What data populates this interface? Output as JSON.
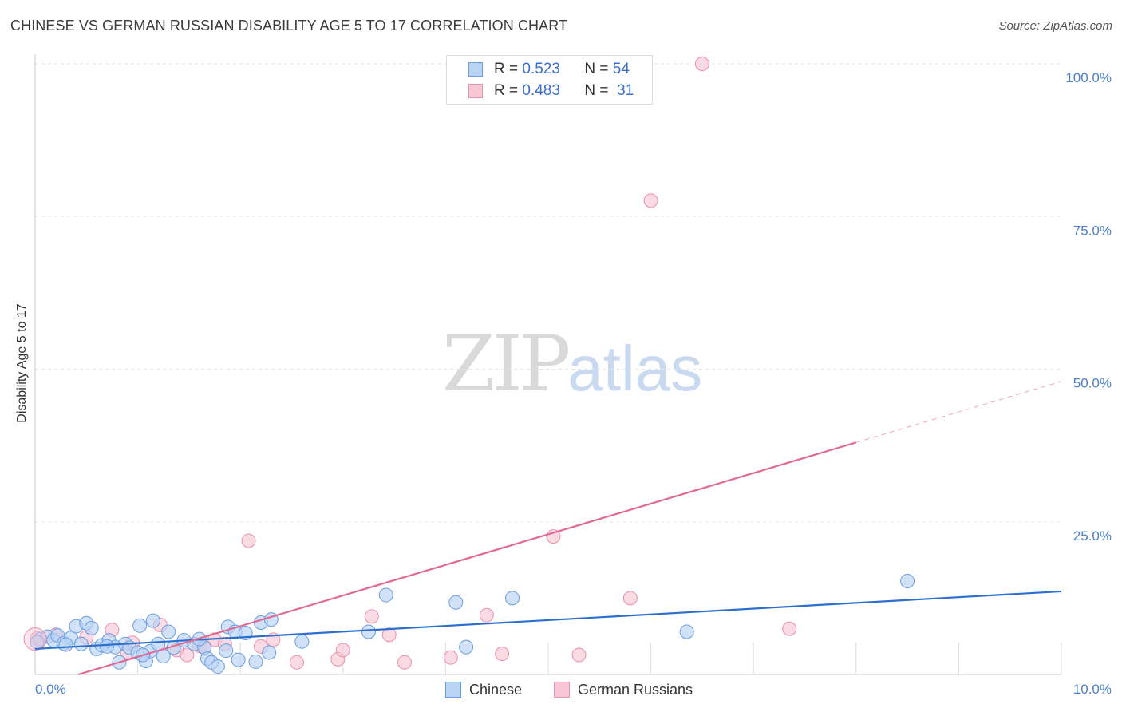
{
  "header": {
    "title": "CHINESE VS GERMAN RUSSIAN DISABILITY AGE 5 TO 17 CORRELATION CHART",
    "source": "Source: ZipAtlas.com"
  },
  "watermark": {
    "zip": "ZIP",
    "atlas": "atlas"
  },
  "legend": {
    "r_label": "R =",
    "n_label": "N =",
    "series": [
      {
        "name": "Chinese",
        "r": "0.523",
        "n": "54"
      },
      {
        "name": "German Russians",
        "r": "0.483",
        "n": "31"
      }
    ]
  },
  "colors": {
    "chinese_fill": "#b9d3f4",
    "chinese_stroke": "#6a9ee0",
    "chinese_line": "#2d6fcf",
    "german_fill": "#f8c6d4",
    "german_stroke": "#e991ad",
    "german_line": "#e06a93",
    "tick_text": "#4a7fd1",
    "grid": "#e5e5e5"
  },
  "chart_data": {
    "type": "scatter",
    "title": "CHINESE VS GERMAN RUSSIAN DISABILITY AGE 5 TO 17 CORRELATION CHART",
    "xlabel": "",
    "ylabel": "Disability Age 5 to 17",
    "xlim": [
      0,
      10
    ],
    "ylim": [
      0,
      100
    ],
    "x_tick_labels": [
      "0.0%",
      "10.0%"
    ],
    "y_ticks": [
      25,
      50,
      75,
      100
    ],
    "y_tick_labels": [
      "25.0%",
      "50.0%",
      "75.0%",
      "100.0%"
    ],
    "grid": true,
    "series": [
      {
        "name": "Chinese",
        "points": [
          [
            0.05,
            5.8
          ],
          [
            0.12,
            6.2
          ],
          [
            0.18,
            5.6
          ],
          [
            0.22,
            6.4
          ],
          [
            0.28,
            5.1
          ],
          [
            0.35,
            6.0
          ],
          [
            0.4,
            7.9
          ],
          [
            0.45,
            5.0
          ],
          [
            0.5,
            8.4
          ],
          [
            0.55,
            7.6
          ],
          [
            0.6,
            4.2
          ],
          [
            0.65,
            4.8
          ],
          [
            0.72,
            5.6
          ],
          [
            0.78,
            4.5
          ],
          [
            0.82,
            2.0
          ],
          [
            0.88,
            5.0
          ],
          [
            0.92,
            4.4
          ],
          [
            1.0,
            3.6
          ],
          [
            1.02,
            8.0
          ],
          [
            1.08,
            2.2
          ],
          [
            1.12,
            3.8
          ],
          [
            1.15,
            8.8
          ],
          [
            1.2,
            5.0
          ],
          [
            1.25,
            3.0
          ],
          [
            1.3,
            7.0
          ],
          [
            1.35,
            4.4
          ],
          [
            1.45,
            5.6
          ],
          [
            1.55,
            5.0
          ],
          [
            1.65,
            4.4
          ],
          [
            1.68,
            2.6
          ],
          [
            1.72,
            2.0
          ],
          [
            1.78,
            1.3
          ],
          [
            1.86,
            3.9
          ],
          [
            1.88,
            7.8
          ],
          [
            1.95,
            7.0
          ],
          [
            1.98,
            2.4
          ],
          [
            2.15,
            2.1
          ],
          [
            2.2,
            8.5
          ],
          [
            2.28,
            3.6
          ],
          [
            2.3,
            9.0
          ],
          [
            2.6,
            5.4
          ],
          [
            3.25,
            7.0
          ],
          [
            3.42,
            13.0
          ],
          [
            4.1,
            11.8
          ],
          [
            4.2,
            4.5
          ],
          [
            4.65,
            12.5
          ],
          [
            6.35,
            7.0
          ],
          [
            8.5,
            15.3
          ],
          [
            0.02,
            5.3
          ],
          [
            0.3,
            4.9
          ],
          [
            0.7,
            4.6
          ],
          [
            1.05,
            3.2
          ],
          [
            1.6,
            5.8
          ],
          [
            2.05,
            6.8
          ]
        ]
      },
      {
        "name": "German Russians",
        "points": [
          [
            0.02,
            5.9
          ],
          [
            0.2,
            6.5
          ],
          [
            0.5,
            6.1
          ],
          [
            0.75,
            7.3
          ],
          [
            0.95,
            5.2
          ],
          [
            1.22,
            8.1
          ],
          [
            1.38,
            4.0
          ],
          [
            1.48,
            3.2
          ],
          [
            1.6,
            4.7
          ],
          [
            1.75,
            5.7
          ],
          [
            1.85,
            5.0
          ],
          [
            2.08,
            21.9
          ],
          [
            2.2,
            4.6
          ],
          [
            2.32,
            5.7
          ],
          [
            2.55,
            2.0
          ],
          [
            2.95,
            2.5
          ],
          [
            3.28,
            9.5
          ],
          [
            3.45,
            6.5
          ],
          [
            3.6,
            2.0
          ],
          [
            4.05,
            2.8
          ],
          [
            4.4,
            9.7
          ],
          [
            4.55,
            3.4
          ],
          [
            5.05,
            22.6
          ],
          [
            5.3,
            3.2
          ],
          [
            5.8,
            12.5
          ],
          [
            6.0,
            77.6
          ],
          [
            6.5,
            100.0
          ],
          [
            7.35,
            7.5
          ],
          [
            0.9,
            3.7
          ],
          [
            1.65,
            4.5
          ],
          [
            3.0,
            4.0
          ]
        ]
      }
    ],
    "trend_lines": [
      {
        "series": "Chinese",
        "x0": 0,
        "y0": 4.2,
        "x1": 10,
        "y1": 13.6,
        "style": "solid"
      },
      {
        "series": "German Russians",
        "x0": 0.42,
        "y0": 0,
        "x1": 8.0,
        "y1": 38.0,
        "style": "solid"
      },
      {
        "series": "German Russians",
        "x0": 8.0,
        "y0": 38.0,
        "x1": 10,
        "y1": 48.0,
        "style": "dashed"
      }
    ]
  }
}
